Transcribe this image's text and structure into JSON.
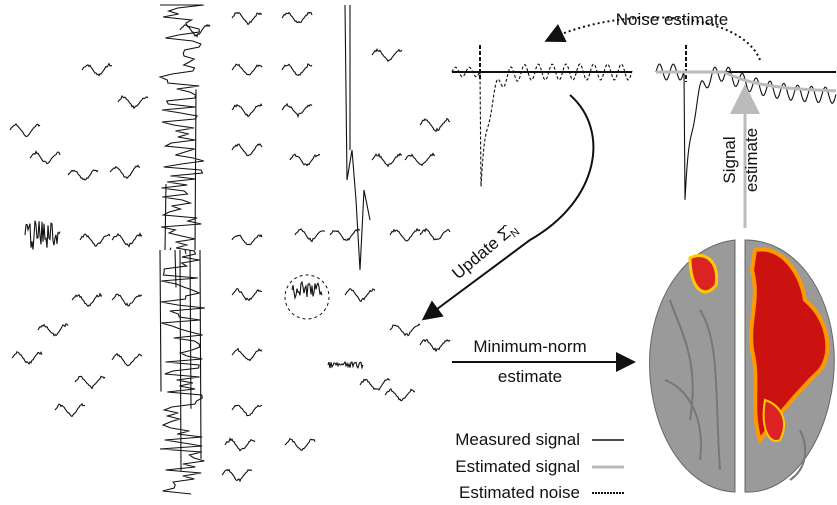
{
  "labels": {
    "noise_estimate": "Noise estimate",
    "signal_line1": "Signal",
    "signal_line2": "estimate",
    "update": "Update",
    "sigma": "Σ̂",
    "sigma_sub": "N",
    "minnorm_line1": "Minimum-norm",
    "minnorm_line2": "estimate"
  },
  "legend": [
    {
      "label": "Measured signal"
    },
    {
      "label": "Estimated signal"
    },
    {
      "label": "Estimated noise"
    }
  ]
}
